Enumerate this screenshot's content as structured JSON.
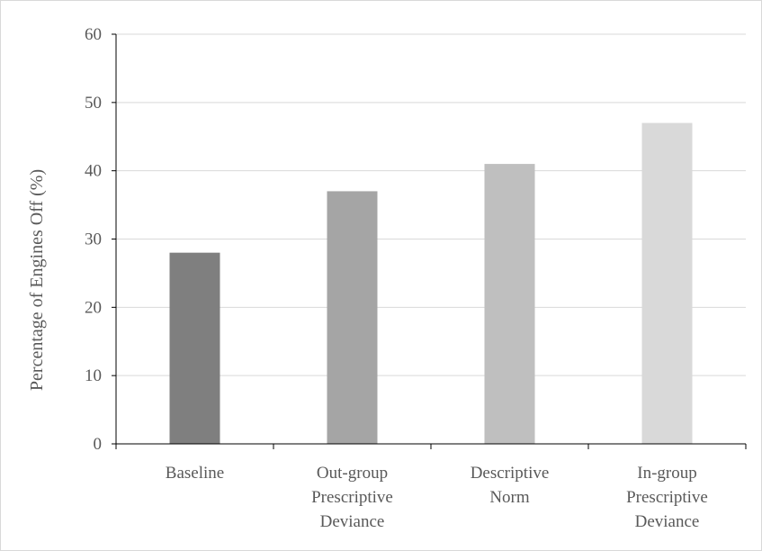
{
  "chart_data": {
    "type": "bar",
    "title": "",
    "xlabel": "",
    "ylabel": "Percentage of Engines Off (%)",
    "ylim": [
      0,
      60
    ],
    "yticks": [
      0,
      10,
      20,
      30,
      40,
      50,
      60
    ],
    "grid": true,
    "legend": "none",
    "categories": [
      [
        "Baseline"
      ],
      [
        "Out-group",
        "Prescriptive",
        "Deviance"
      ],
      [
        "Descriptive",
        "Norm"
      ],
      [
        "In-group",
        "Prescriptive",
        "Deviance"
      ]
    ],
    "values": [
      28,
      37,
      41,
      47
    ],
    "colors": [
      "#7f7f7f",
      "#a5a5a5",
      "#bfbfbf",
      "#d9d9d9"
    ]
  }
}
